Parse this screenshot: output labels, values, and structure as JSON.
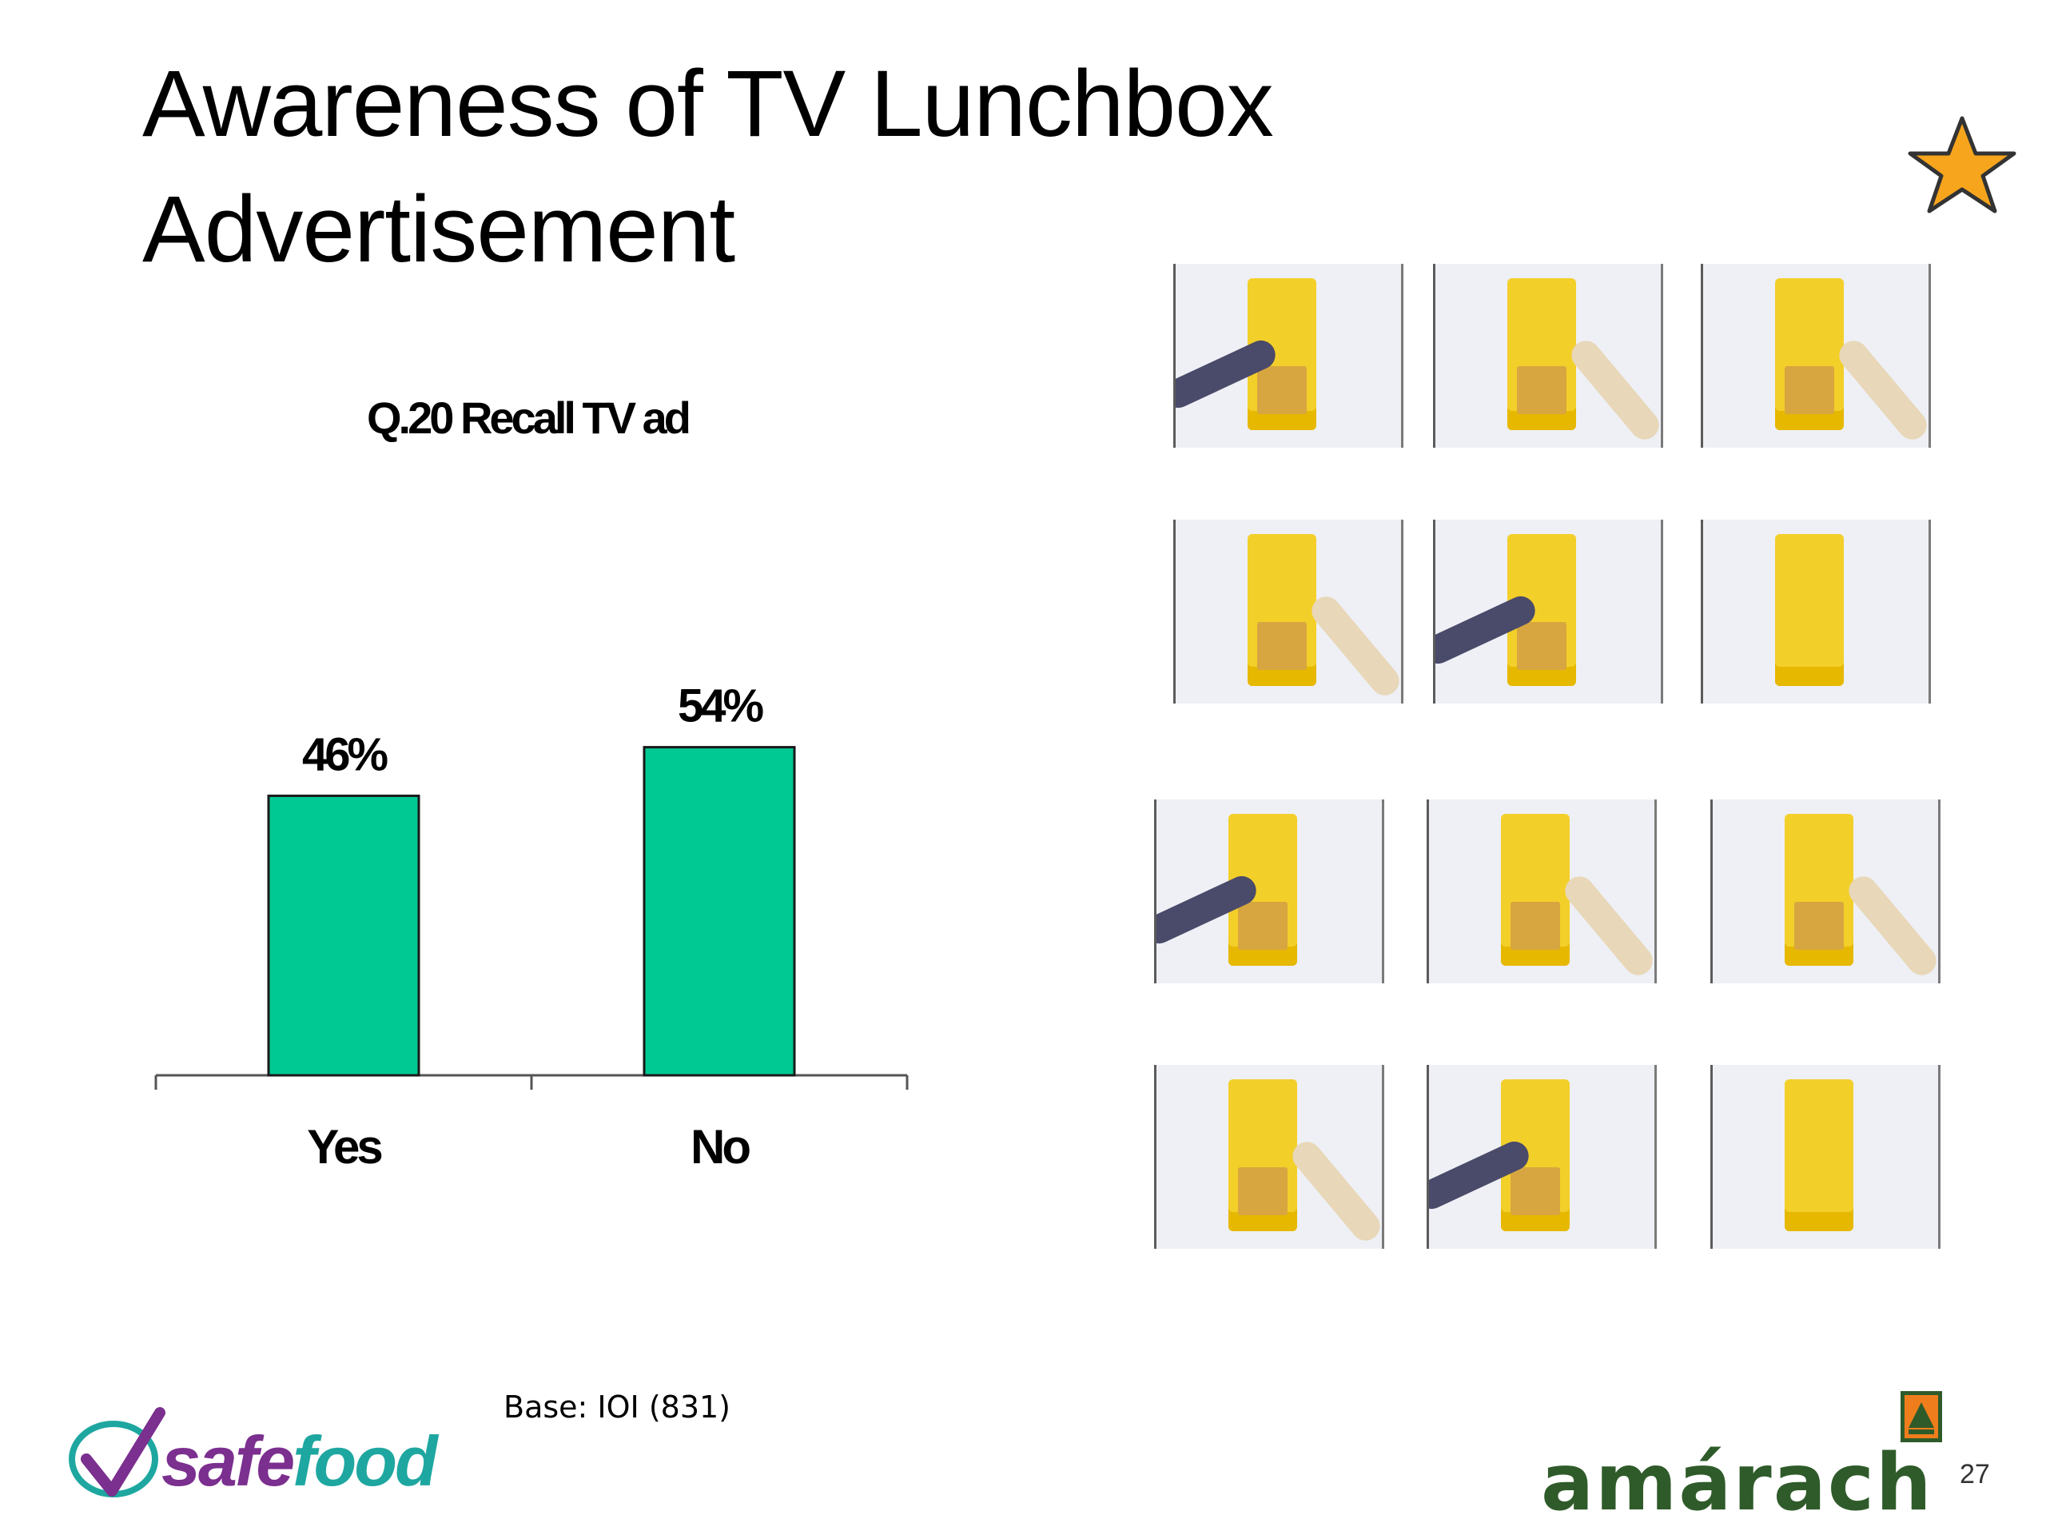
{
  "page": {
    "title": "Awareness of TV Lunchbox Advertisement",
    "base_note": "Base: IOI (831)",
    "page_number": "27"
  },
  "logos": {
    "safefood": "safefood",
    "amarach": "amárach"
  },
  "icons": {
    "star": "star-icon",
    "star_color": "#f7a51c"
  },
  "storyboard": {
    "frames": 12
  },
  "chart_data": {
    "type": "bar",
    "title": "Q.20 Recall TV ad",
    "categories": [
      "Yes",
      "No"
    ],
    "values": [
      46,
      54
    ],
    "value_labels": [
      "46%",
      "54%"
    ],
    "ylim": [
      0,
      100
    ],
    "grid": false,
    "bar_color": "#00c994",
    "xlabel": "",
    "ylabel": ""
  }
}
